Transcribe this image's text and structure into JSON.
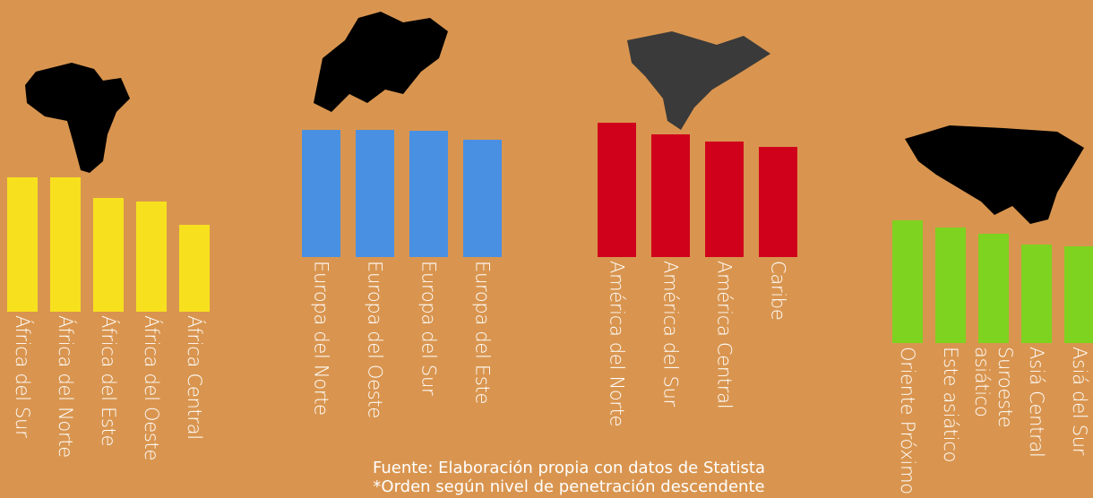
{
  "chart_data": [
    {
      "type": "bar",
      "categories": [
        "África del Sur",
        "África del Norte",
        "África del Este",
        "África del Oeste",
        "África Central"
      ],
      "values": [
        79,
        79,
        67,
        65,
        51
      ],
      "color": "#f7e11e",
      "ylim": [
        0,
        100
      ]
    },
    {
      "type": "bar",
      "categories": [
        "Europa del Norte",
        "Europa del Oeste",
        "Europa del Sur",
        "Europa del Este"
      ],
      "values": [
        75,
        75,
        74,
        69
      ],
      "color": "#4a90e2",
      "ylim": [
        0,
        100
      ]
    },
    {
      "type": "bar",
      "categories": [
        "América del Norte",
        "América del Sur",
        "América Central",
        "Caribe"
      ],
      "values": [
        79,
        72,
        68,
        65
      ],
      "color": "#d0021b",
      "ylim": [
        0,
        100
      ]
    },
    {
      "type": "bar",
      "categories": [
        "Oriente Próximo",
        "Este asiático",
        "Suroeste asiático",
        "Asiá Central",
        "Asiá del Sur"
      ],
      "values": [
        72,
        68,
        64,
        58,
        57
      ],
      "color": "#7ed321",
      "ylim": [
        0,
        100
      ]
    }
  ],
  "footer": {
    "source": "Fuente: Elaboración propia con datos de Statista",
    "note": "*Orden según nivel de penetración descendente"
  }
}
